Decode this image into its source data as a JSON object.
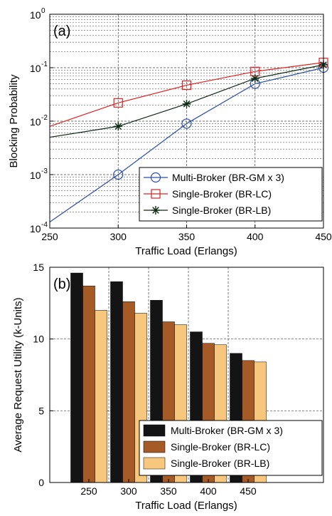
{
  "chart_data": [
    {
      "type": "line",
      "panel_label": "(a)",
      "xlabel": "Traffic Load (Erlangs)",
      "ylabel": "Blocking Probability",
      "y_scale": "log",
      "xlim": [
        250,
        450
      ],
      "ylim": [
        0.0001,
        1
      ],
      "x_ticks": [
        "250",
        "300",
        "350",
        "400",
        "450"
      ],
      "y_ticks": [
        {
          "value": 0.0001,
          "base": "10",
          "exp": "-4"
        },
        {
          "value": 0.001,
          "base": "10",
          "exp": "-3"
        },
        {
          "value": 0.01,
          "base": "10",
          "exp": "-2"
        },
        {
          "value": 0.1,
          "base": "10",
          "exp": "-1"
        },
        {
          "value": 1,
          "base": "10",
          "exp": "0"
        }
      ],
      "grid": true,
      "legend_position": "bottom-right",
      "series": [
        {
          "name": "Multi-Broker (BR-GM x 3)",
          "color": "#2a4fa8",
          "marker": "circle",
          "x": [
            250,
            300,
            350,
            400,
            450
          ],
          "y": [
            0.00013,
            0.001,
            0.009,
            0.05,
            0.1
          ]
        },
        {
          "name": "Single-Broker (BR-LC)",
          "color": "#e02020",
          "marker": "square",
          "x": [
            250,
            300,
            350,
            400,
            450
          ],
          "y": [
            0.008,
            0.022,
            0.047,
            0.085,
            0.125
          ]
        },
        {
          "name": "Single-Broker (BR-LB)",
          "color": "#0d2a12",
          "marker": "asterisk",
          "x": [
            250,
            300,
            350,
            400,
            450
          ],
          "y": [
            0.005,
            0.008,
            0.021,
            0.063,
            0.113
          ]
        }
      ]
    },
    {
      "type": "bar",
      "panel_label": "(b)",
      "xlabel": "Traffic Load (Erlangs)",
      "ylabel": "Average Request Utility (k-Units)",
      "ylim": [
        0,
        15
      ],
      "y_ticks": [
        "0",
        "5",
        "10",
        "15"
      ],
      "categories": [
        "250",
        "300",
        "350",
        "400",
        "450"
      ],
      "grid": true,
      "legend_position": "bottom-right",
      "series": [
        {
          "name": "Multi-Broker (BR-GM x 3)",
          "color": "#141414",
          "values": [
            14.6,
            14.0,
            12.7,
            10.5,
            9.0
          ]
        },
        {
          "name": "Single-Broker (BR-LC)",
          "color": "#a65a26",
          "values": [
            13.7,
            12.6,
            11.2,
            9.7,
            8.5
          ]
        },
        {
          "name": "Single-Broker (BR-LB)",
          "color": "#f7c77e",
          "values": [
            12.0,
            11.8,
            11.0,
            9.6,
            8.4
          ]
        }
      ]
    }
  ]
}
